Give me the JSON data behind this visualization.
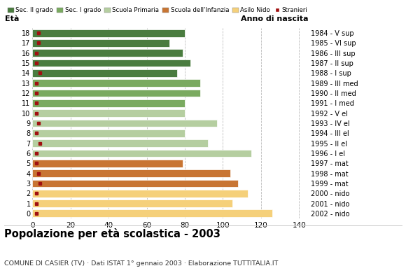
{
  "ages": [
    18,
    17,
    16,
    15,
    14,
    13,
    12,
    11,
    10,
    9,
    8,
    7,
    6,
    5,
    4,
    3,
    2,
    1,
    0
  ],
  "years": [
    "1984 - V sup",
    "1985 - VI sup",
    "1986 - III sup",
    "1987 - II sup",
    "1988 - I sup",
    "1989 - III med",
    "1990 - II med",
    "1991 - I med",
    "1992 - V el",
    "1993 - IV el",
    "1994 - III el",
    "1995 - II el",
    "1996 - I el",
    "1997 - mat",
    "1998 - mat",
    "1999 - mat",
    "2000 - nido",
    "2001 - nido",
    "2002 - nido"
  ],
  "bar_values": [
    80,
    72,
    79,
    83,
    76,
    88,
    88,
    80,
    80,
    97,
    80,
    92,
    115,
    79,
    104,
    108,
    113,
    105,
    126
  ],
  "bar_colors": [
    "#4a7c3f",
    "#4a7c3f",
    "#4a7c3f",
    "#4a7c3f",
    "#4a7c3f",
    "#7aaa60",
    "#7aaa60",
    "#7aaa60",
    "#b5ceA0",
    "#b5ceA0",
    "#b5ceA0",
    "#b5ceA0",
    "#b5ceA0",
    "#c87533",
    "#c87533",
    "#c87533",
    "#f5d07a",
    "#f5d07a",
    "#f5d07a"
  ],
  "stranieri_values": [
    3,
    3,
    2,
    2,
    4,
    2,
    2,
    2,
    2,
    3,
    2,
    4,
    2,
    2,
    3,
    4,
    2,
    2,
    2
  ],
  "stranieri_color": "#a01010",
  "legend_labels": [
    "Sec. II grado",
    "Sec. I grado",
    "Scuola Primaria",
    "Scuola dell'Infanzia",
    "Asilo Nido",
    "Stranieri"
  ],
  "legend_colors": [
    "#4a7c3f",
    "#7aaa60",
    "#b5ceA0",
    "#c87533",
    "#f5d07a",
    "#a01010"
  ],
  "title": "Popolazione per età scolastica - 2003",
  "subtitle": "COMUNE DI CASIER (TV) · Dati ISTAT 1° gennaio 2003 · Elaborazione TUTTITALIA.IT",
  "eta_label": "Età",
  "anno_label": "Anno di nascita",
  "xlim": [
    0,
    145
  ],
  "xticks": [
    0,
    20,
    40,
    60,
    80,
    100,
    120,
    140
  ],
  "bg_color": "#ffffff",
  "grid_color": "#bbbbbb"
}
